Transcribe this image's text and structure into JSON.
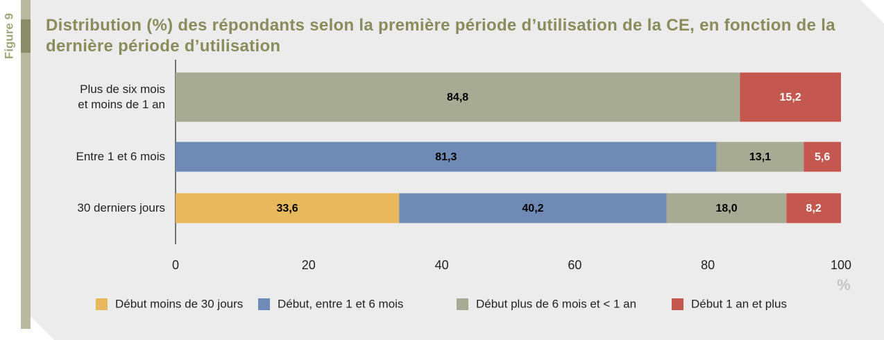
{
  "figure_label": "Figure 9",
  "chart_data": {
    "type": "stacked-bar-horizontal",
    "title": "Distribution (%) des répondants selon la première période d’utilisation de la CE, en fonction de la dernière période d’utilisation",
    "categories": [
      "Plus de six mois\net moins de 1 an",
      "Entre 1 et 6 mois",
      "30 derniers jours"
    ],
    "series": [
      {
        "name": "Début moins de 30 jours",
        "color": "#e8b85c",
        "label_color": "#000000",
        "values": [
          null,
          null,
          33.6
        ],
        "value_labels": [
          null,
          null,
          "33,6"
        ]
      },
      {
        "name": "Début, entre 1 et 6 mois",
        "color": "#6f8ab5",
        "label_color": "#000000",
        "values": [
          null,
          81.3,
          40.2
        ],
        "value_labels": [
          null,
          "81,3",
          "40,2"
        ]
      },
      {
        "name": "Début plus de 6 mois et < 1 an",
        "color": "#a8ab93",
        "label_color": "#000000",
        "values": [
          84.8,
          13.1,
          18.0
        ],
        "value_labels": [
          "84,8",
          "13,1",
          "18,0"
        ]
      },
      {
        "name": "Début 1 an et plus",
        "color": "#c4584f",
        "label_color": "#ffffff",
        "values": [
          15.2,
          5.6,
          8.2
        ],
        "value_labels": [
          "15,2",
          "5,6",
          "8,2"
        ]
      }
    ],
    "xlim": [
      0,
      100
    ],
    "xticks": [
      0,
      20,
      40,
      60,
      80,
      100
    ],
    "xlabel": "%"
  }
}
